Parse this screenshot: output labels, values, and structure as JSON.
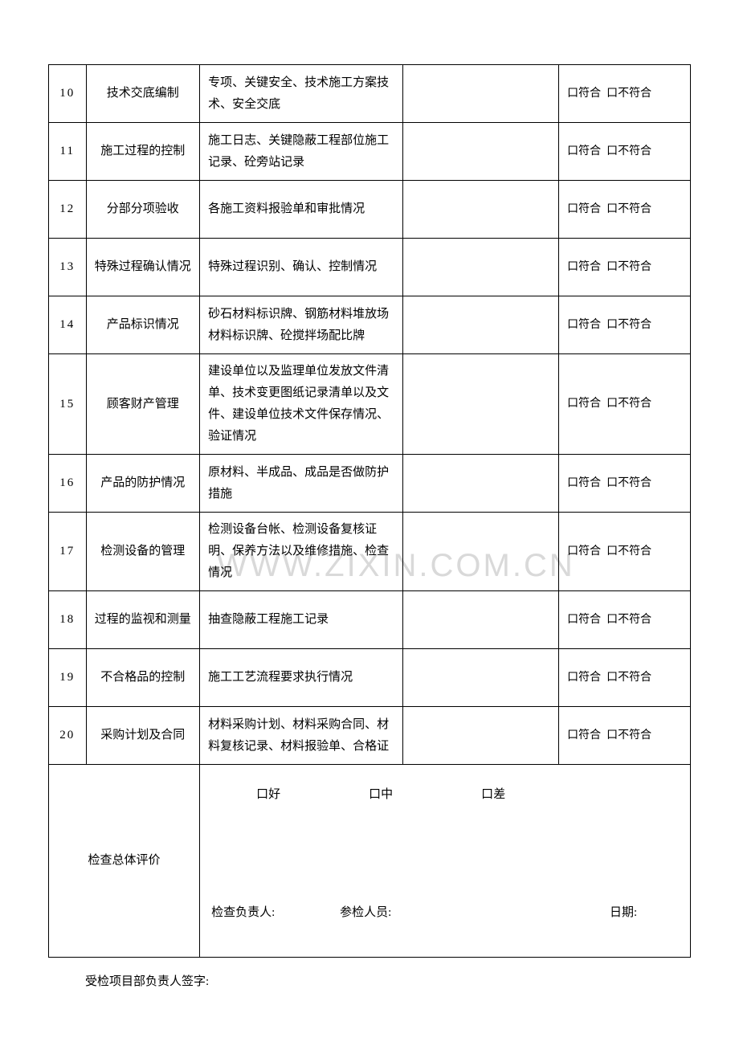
{
  "watermark": "WWW.ZIXIN.COM.CN",
  "checkbox_glyph": "口",
  "result_conform": "符合",
  "result_nonconform": "不符合",
  "rows": [
    {
      "num": "10",
      "name": "技术交底编制",
      "desc": "专项、关键安全、技术施工方案技术、安全交底"
    },
    {
      "num": "11",
      "name": "施工过程的控制",
      "desc": "施工日志、关键隐蔽工程部位施工记录、砼旁站记录"
    },
    {
      "num": "12",
      "name": "分部分项验收",
      "desc": "各施工资料报验单和审批情况"
    },
    {
      "num": "13",
      "name": "特殊过程确认情况",
      "desc": "特殊过程识别、确认、控制情况"
    },
    {
      "num": "14",
      "name": "产品标识情况",
      "desc": "砂石材料标识牌、钢筋材料堆放场材料标识牌、砼搅拌场配比牌"
    },
    {
      "num": "15",
      "name": "顾客财产管理",
      "desc": "建设单位以及监理单位发放文件清单、技术变更图纸记录清单以及文件、建设单位技术文件保存情况、验证情况"
    },
    {
      "num": "16",
      "name": "产品的防护情况",
      "desc": "原材料、半成品、成品是否做防护措施"
    },
    {
      "num": "17",
      "name": "检测设备的管理",
      "desc": "检测设备台帐、检测设备复核证明、保养方法以及维修措施、检查情况"
    },
    {
      "num": "18",
      "name": "过程的监视和测量",
      "desc": "抽查隐蔽工程施工记录"
    },
    {
      "num": "19",
      "name": "不合格品的控制",
      "desc": "施工工艺流程要求执行情况"
    },
    {
      "num": "20",
      "name": "采购计划及合同",
      "desc": "材料采购计划、材料采购合同、材料复核记录、材料报验单、合格证"
    }
  ],
  "summary": {
    "label": "检查总体评价",
    "ratings": {
      "good": "好",
      "mid": "中",
      "bad": "差"
    },
    "inspector_label": "检查负责人:",
    "participants_label": "参检人员:",
    "date_label": "日期:"
  },
  "footer_sign": "受检项目部负责人签字:",
  "colors": {
    "text": "#000000",
    "border": "#000000",
    "background": "#ffffff",
    "watermark": "#d9d9d9"
  },
  "fonts": {
    "body_family": "SimSun",
    "body_size_pt": 11,
    "watermark_size_pt": 30
  }
}
